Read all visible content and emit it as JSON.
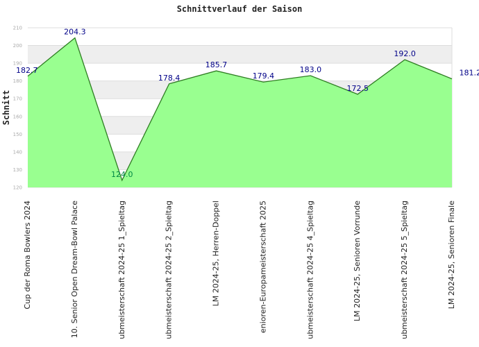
{
  "chart_data": {
    "type": "area",
    "title": "Schnittverlauf der Saison",
    "xlabel": "",
    "ylabel": "Schnitt",
    "ylim": [
      120,
      210
    ],
    "yticks": [
      120,
      130,
      140,
      150,
      160,
      170,
      180,
      190,
      200,
      210
    ],
    "grid": true,
    "legend": "none",
    "categories": [
      "Cup der Roma Bowlers 2024",
      "10. Senior Open Dream-Bowl Palace",
      "ubmeisterschaft 2024-25  1_Spieltag",
      "ubmeisterschaft 2024-25  2_Spieltag",
      "LM 2024-25, Herren-Doppel",
      "enioren-Europameisterschaft 2025",
      "ubmeisterschaft 2024-25  4_Spieltag",
      "LM 2024-25, Senioren Vorrunde",
      "ubmeisterschaft 2024-25  5_Spieltag",
      "LM 2024-25, Senioren Finale"
    ],
    "values": [
      182.7,
      204.3,
      124.0,
      178.4,
      185.7,
      179.4,
      183.0,
      172.5,
      192.0,
      181.2
    ],
    "value_labels": [
      "182.7",
      "204.3",
      "124.0",
      "178.4",
      "185.7",
      "179.4",
      "183.0",
      "172.5",
      "192.0",
      "181.2"
    ],
    "colors": {
      "fill": "#99ff90",
      "line": "#2e7d22",
      "label": "#000088",
      "label_below": "#008844",
      "band": "#eeeeee",
      "grid": "#dddddd"
    }
  }
}
